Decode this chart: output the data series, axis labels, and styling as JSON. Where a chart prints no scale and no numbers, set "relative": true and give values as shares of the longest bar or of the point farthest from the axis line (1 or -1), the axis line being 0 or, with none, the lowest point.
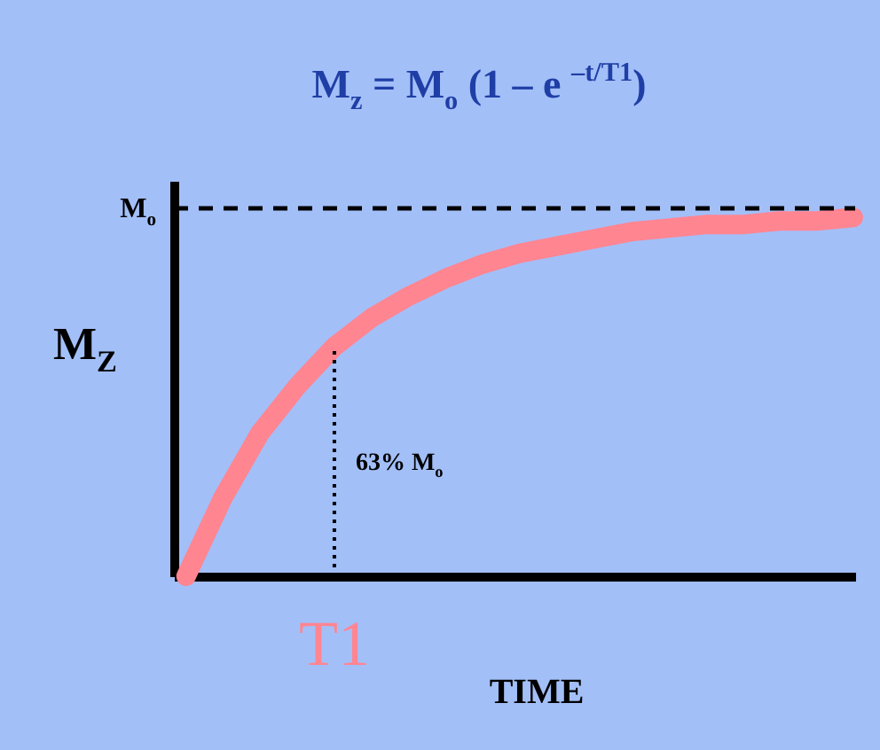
{
  "chart_data": {
    "type": "line",
    "relative": true,
    "title": "M$_{z}$ = M$_{o}$ (1 – e $^{–t/T1}$)",
    "xlabel": "TIME",
    "ylabel": "M$_{Z}$",
    "categories": [
      null,
      null,
      null,
      null,
      null,
      null,
      null,
      null,
      null,
      null,
      null,
      null,
      null,
      null,
      null,
      null,
      null,
      null,
      null
    ],
    "tick_labels": false,
    "series": [
      {
        "color": "#ff8591",
        "values": [
          0,
          0.22,
          0.4,
          0.53,
          0.64,
          0.72,
          0.78,
          0.83,
          0.87,
          0.9,
          0.92,
          0.94,
          0.96,
          0.97,
          0.98,
          0.98,
          0.99,
          0.99,
          1
        ]
      }
    ],
    "ref_lines": [
      {
        "axis": "y",
        "value": 1.025,
        "label": "M$_{o}$",
        "color": "#000000",
        "line_style": "dashed"
      }
    ],
    "annotations": [
      "63% M$_{o}$",
      "T1"
    ],
    "line_style": "solid"
  }
}
